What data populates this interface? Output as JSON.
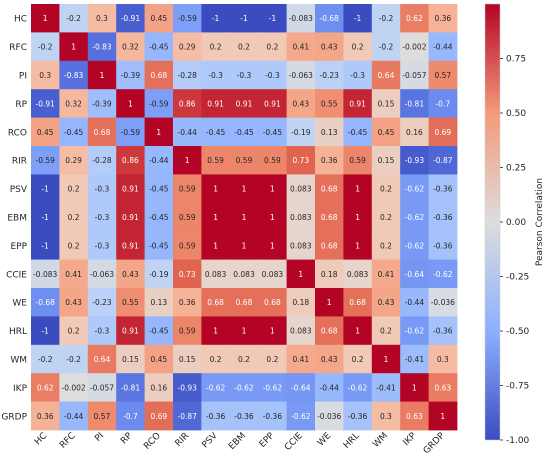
{
  "chart_data": {
    "type": "heatmap",
    "title": "",
    "xlabel": "",
    "ylabel": "",
    "row_labels": [
      "HC",
      "RFC",
      "PI",
      "RP",
      "RCO",
      "RIR",
      "PSV",
      "EBM",
      "EPP",
      "CCIE",
      "WE",
      "HRL",
      "WM",
      "IKP",
      "GRDP"
    ],
    "col_labels": [
      "HC",
      "RFC",
      "PI",
      "RP",
      "RCO",
      "RIR",
      "PSV",
      "EBM",
      "EPP",
      "CCIE",
      "WE",
      "HRL",
      "WM",
      "IKP",
      "GRDP"
    ],
    "matrix": [
      [
        "1",
        "-0.2",
        "0.3",
        "-0.91",
        "0.45",
        "-0.59",
        "-1",
        "-1",
        "-1",
        "-0.083",
        "-0.68",
        "-1",
        "-0.2",
        "0.62",
        "0.36"
      ],
      [
        "-0.2",
        "1",
        "-0.83",
        "0.32",
        "-0.45",
        "0.29",
        "0.2",
        "0.2",
        "0.2",
        "0.41",
        "0.43",
        "0.2",
        "-0.2",
        "-0.002",
        "-0.44"
      ],
      [
        "0.3",
        "-0.83",
        "1",
        "-0.39",
        "0.68",
        "-0.28",
        "-0.3",
        "-0.3",
        "-0.3",
        "-0.063",
        "-0.23",
        "-0.3",
        "0.64",
        "-0.057",
        "0.57"
      ],
      [
        "-0.91",
        "0.32",
        "-0.39",
        "1",
        "-0.59",
        "0.86",
        "0.91",
        "0.91",
        "0.91",
        "0.43",
        "0.55",
        "0.91",
        "0.15",
        "-0.81",
        "-0.7"
      ],
      [
        "0.45",
        "-0.45",
        "0.68",
        "-0.59",
        "1",
        "-0.44",
        "-0.45",
        "-0.45",
        "-0.45",
        "-0.19",
        "0.13",
        "-0.45",
        "0.45",
        "0.16",
        "0.69"
      ],
      [
        "-0.59",
        "0.29",
        "-0.28",
        "0.86",
        "-0.44",
        "1",
        "0.59",
        "0.59",
        "0.59",
        "0.73",
        "0.36",
        "0.59",
        "0.15",
        "-0.93",
        "-0.87"
      ],
      [
        "-1",
        "0.2",
        "-0.3",
        "0.91",
        "-0.45",
        "0.59",
        "1",
        "1",
        "1",
        "0.083",
        "0.68",
        "1",
        "0.2",
        "-0.62",
        "-0.36"
      ],
      [
        "-1",
        "0.2",
        "-0.3",
        "0.91",
        "-0.45",
        "0.59",
        "1",
        "1",
        "1",
        "0.083",
        "0.68",
        "1",
        "0.2",
        "-0.62",
        "-0.36"
      ],
      [
        "-1",
        "0.2",
        "-0.3",
        "0.91",
        "-0.45",
        "0.59",
        "1",
        "1",
        "1",
        "0.083",
        "0.68",
        "1",
        "0.2",
        "-0.62",
        "-0.36"
      ],
      [
        "-0.083",
        "0.41",
        "-0.063",
        "0.43",
        "-0.19",
        "0.73",
        "0.083",
        "0.083",
        "0.083",
        "1",
        "0.18",
        "0.083",
        "0.41",
        "-0.64",
        "-0.62"
      ],
      [
        "-0.68",
        "0.43",
        "-0.23",
        "0.55",
        "0.13",
        "0.36",
        "0.68",
        "0.68",
        "0.68",
        "0.18",
        "1",
        "0.68",
        "0.43",
        "-0.44",
        "-0.036"
      ],
      [
        "-1",
        "0.2",
        "-0.3",
        "0.91",
        "-0.45",
        "0.59",
        "1",
        "1",
        "1",
        "0.083",
        "0.68",
        "1",
        "0.2",
        "-0.62",
        "-0.36"
      ],
      [
        "-0.2",
        "-0.2",
        "0.64",
        "0.15",
        "0.45",
        "0.15",
        "0.2",
        "0.2",
        "0.2",
        "0.41",
        "0.43",
        "0.2",
        "1",
        "-0.41",
        "0.3"
      ],
      [
        "0.62",
        "-0.002",
        "-0.057",
        "-0.81",
        "0.16",
        "-0.93",
        "-0.62",
        "-0.62",
        "-0.62",
        "-0.64",
        "-0.44",
        "-0.62",
        "-0.41",
        "1",
        "0.63"
      ],
      [
        "0.36",
        "-0.44",
        "0.57",
        "-0.7",
        "0.69",
        "-0.87",
        "-0.36",
        "-0.36",
        "-0.36",
        "-0.62",
        "-0.036",
        "-0.36",
        "0.3",
        "0.63",
        "1"
      ]
    ],
    "value_range": [
      -1,
      1
    ],
    "colormap": "coolwarm",
    "colors": {
      "low": "#3b4cc0",
      "mid": "#dddddd",
      "high": "#b40426"
    },
    "colorbar": {
      "label": "Pearson Correlation",
      "ticks": [
        "0.75",
        "0.50",
        "0.25",
        "0.00",
        "-0.25",
        "-0.50",
        "-0.75",
        "-1.00"
      ],
      "tick_values": [
        0.75,
        0.5,
        0.25,
        0.0,
        -0.25,
        -0.5,
        -0.75,
        -1.0
      ]
    },
    "grid": false,
    "legend": "colorbar-right"
  }
}
